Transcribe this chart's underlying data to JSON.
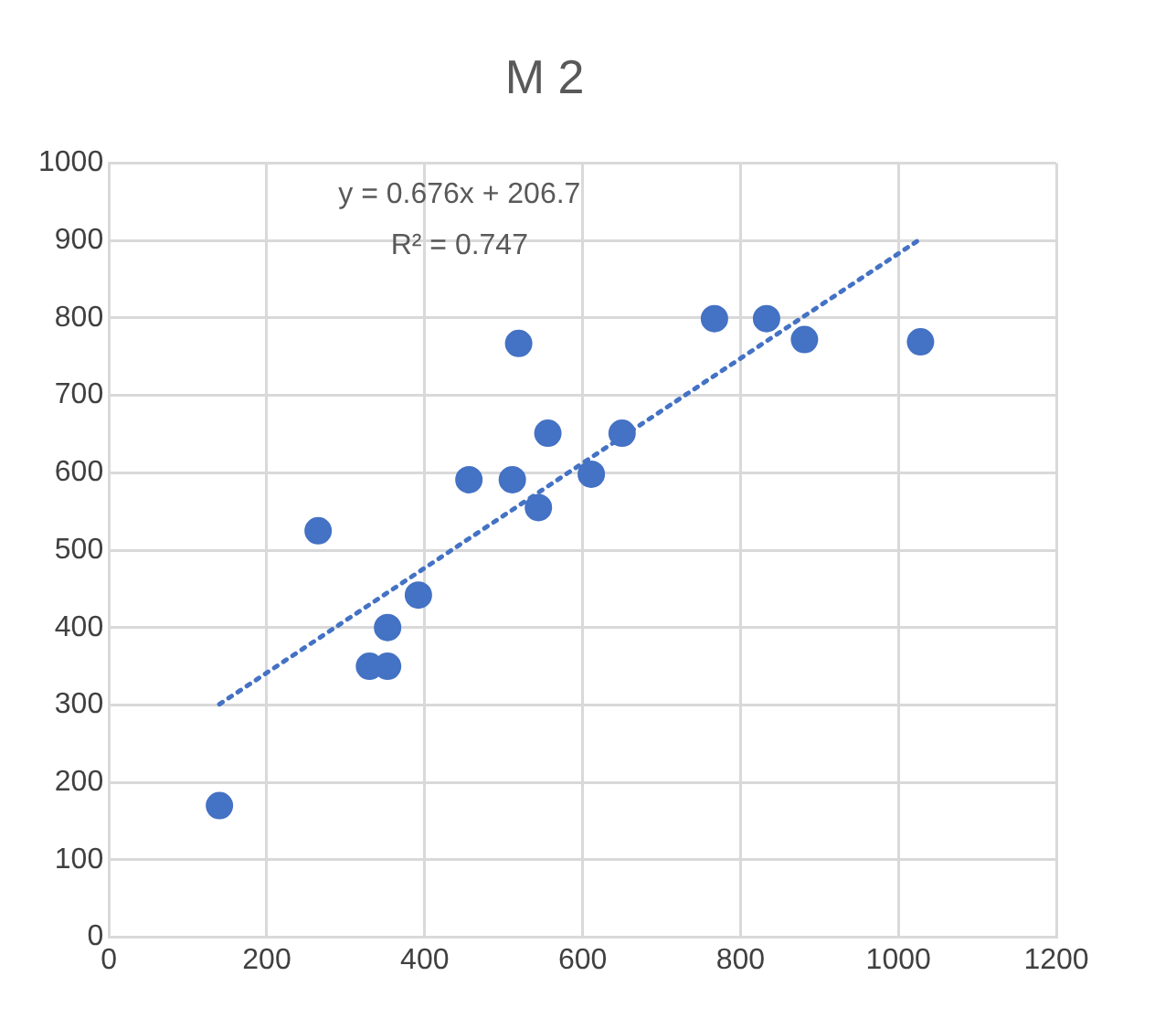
{
  "chart_data": {
    "type": "scatter",
    "title": "M 2",
    "series": [
      {
        "type": "scatter",
        "color": "#4472c4",
        "marker": "circle",
        "x": [
          140,
          265,
          330,
          353,
          353,
          392,
          456,
          511,
          519,
          544,
          556,
          611,
          650,
          767,
          833,
          881,
          1028
        ],
        "values": [
          170,
          525,
          350,
          350,
          400,
          442,
          591,
          591,
          767,
          555,
          651,
          598,
          651,
          799,
          799,
          772,
          769
        ]
      },
      {
        "type": "line",
        "color": "#4472c4",
        "marker": "none",
        "line_style": "dotted",
        "x": [
          140,
          1028
        ],
        "values": [
          301,
          902
        ]
      }
    ],
    "xlim": [
      0,
      1200
    ],
    "xticks": [
      0,
      200,
      400,
      600,
      800,
      1000,
      1200
    ],
    "ylim": [
      0,
      1000
    ],
    "yticks": [
      0,
      100,
      200,
      300,
      400,
      500,
      600,
      700,
      800,
      900,
      1000
    ],
    "grid": true,
    "legend": false,
    "annotations": [
      "y = 0.676x + 206.7",
      "R² = 0.747"
    ]
  }
}
